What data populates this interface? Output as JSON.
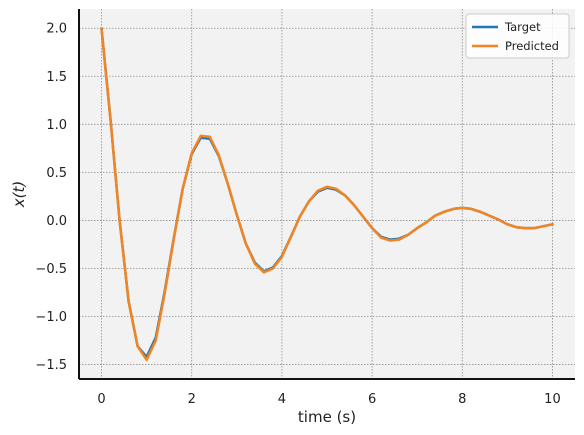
{
  "chart_data": {
    "type": "line",
    "title": "",
    "xlabel": "time (s)",
    "ylabel": "x(t)",
    "xlim": [
      -0.5,
      10.5
    ],
    "ylim": [
      -1.65,
      2.2
    ],
    "xticks": [
      0,
      2,
      4,
      6,
      8,
      10
    ],
    "xtick_labels": [
      "0",
      "2",
      "4",
      "6",
      "8",
      "10"
    ],
    "yticks": [
      2.0,
      1.5,
      1.0,
      0.5,
      0.0,
      -0.5,
      -1.0,
      -1.5
    ],
    "ytick_labels": [
      "2.0",
      "1.5",
      "1.0",
      "0.5",
      "0.0",
      "−0.5",
      "−1.0",
      "−1.5"
    ],
    "grid": true,
    "legend_position": "top-right",
    "background_color": "#f2f2f2",
    "series": [
      {
        "name": "Target",
        "color": "#1f77b4",
        "x": [
          0,
          0.2,
          0.4,
          0.6,
          0.8,
          1.0,
          1.2,
          1.4,
          1.6,
          1.8,
          2.0,
          2.2,
          2.4,
          2.6,
          2.8,
          3.0,
          3.2,
          3.4,
          3.6,
          3.8,
          4.0,
          4.2,
          4.4,
          4.6,
          4.8,
          5.0,
          5.2,
          5.4,
          5.6,
          5.8,
          6.0,
          6.2,
          6.4,
          6.6,
          6.8,
          7.0,
          7.2,
          7.4,
          7.6,
          7.8,
          8.0,
          8.2,
          8.4,
          8.6,
          8.8,
          9.0,
          9.2,
          9.4,
          9.6,
          9.8,
          10.0
        ],
        "y": [
          2.0,
          1.04,
          0.0,
          -0.84,
          -1.31,
          -1.42,
          -1.22,
          -0.74,
          -0.19,
          0.33,
          0.69,
          0.86,
          0.85,
          0.67,
          0.38,
          0.06,
          -0.24,
          -0.44,
          -0.53,
          -0.49,
          -0.37,
          -0.17,
          0.04,
          0.2,
          0.3,
          0.34,
          0.32,
          0.26,
          0.16,
          0.04,
          -0.08,
          -0.17,
          -0.2,
          -0.19,
          -0.15,
          -0.08,
          -0.02,
          0.05,
          0.09,
          0.12,
          0.13,
          0.12,
          0.09,
          0.05,
          0.01,
          -0.04,
          -0.07,
          -0.08,
          -0.08,
          -0.06,
          -0.04
        ]
      },
      {
        "name": "Predicted",
        "color": "#f28522",
        "x": [
          0,
          0.2,
          0.4,
          0.6,
          0.8,
          1.0,
          1.2,
          1.4,
          1.6,
          1.8,
          2.0,
          2.2,
          2.4,
          2.6,
          2.8,
          3.0,
          3.2,
          3.4,
          3.6,
          3.8,
          4.0,
          4.2,
          4.4,
          4.6,
          4.8,
          5.0,
          5.2,
          5.4,
          5.6,
          5.8,
          6.0,
          6.2,
          6.4,
          6.6,
          6.8,
          7.0,
          7.2,
          7.4,
          7.6,
          7.8,
          8.0,
          8.2,
          8.4,
          8.6,
          8.8,
          9.0,
          9.2,
          9.4,
          9.6,
          9.8,
          10.0
        ],
        "y": [
          2.0,
          1.04,
          0.0,
          -0.84,
          -1.31,
          -1.45,
          -1.25,
          -0.76,
          -0.2,
          0.33,
          0.7,
          0.88,
          0.87,
          0.68,
          0.38,
          0.06,
          -0.24,
          -0.45,
          -0.54,
          -0.5,
          -0.38,
          -0.17,
          0.04,
          0.2,
          0.31,
          0.35,
          0.33,
          0.26,
          0.16,
          0.04,
          -0.08,
          -0.18,
          -0.21,
          -0.2,
          -0.15,
          -0.08,
          -0.02,
          0.05,
          0.09,
          0.12,
          0.13,
          0.12,
          0.09,
          0.05,
          0.01,
          -0.04,
          -0.07,
          -0.08,
          -0.08,
          -0.06,
          -0.04
        ]
      }
    ]
  }
}
